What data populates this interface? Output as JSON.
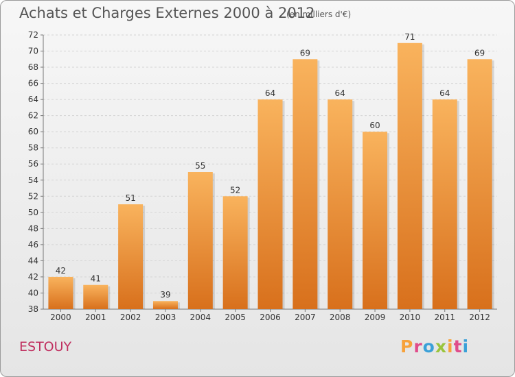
{
  "header": {
    "title": "Achats et Charges Externes 2000 à 2012",
    "unit": "(en milliers d'€)"
  },
  "footer": {
    "commune": "ESTOUY",
    "brand": "Proxiti",
    "brand_colors": [
      "#f7a23a",
      "#e04c8a",
      "#3aa0d8",
      "#9ac43c",
      "#f7a23a",
      "#e04c8a",
      "#3aa0d8"
    ]
  },
  "chart_data": {
    "type": "bar",
    "categories": [
      "2000",
      "2001",
      "2002",
      "2003",
      "2004",
      "2005",
      "2006",
      "2007",
      "2008",
      "2009",
      "2010",
      "2011",
      "2012"
    ],
    "values": [
      42,
      41,
      51,
      39,
      55,
      52,
      64,
      69,
      64,
      60,
      71,
      64,
      69
    ],
    "ylim": [
      38,
      72
    ],
    "yticks": [
      38,
      40,
      42,
      44,
      46,
      48,
      50,
      52,
      54,
      56,
      58,
      60,
      62,
      64,
      66,
      68,
      70,
      72
    ],
    "grid": true,
    "bar_color": "#f0943a",
    "bar_color_light": "#f9b35d",
    "bar_color_dark": "#d8701c"
  }
}
